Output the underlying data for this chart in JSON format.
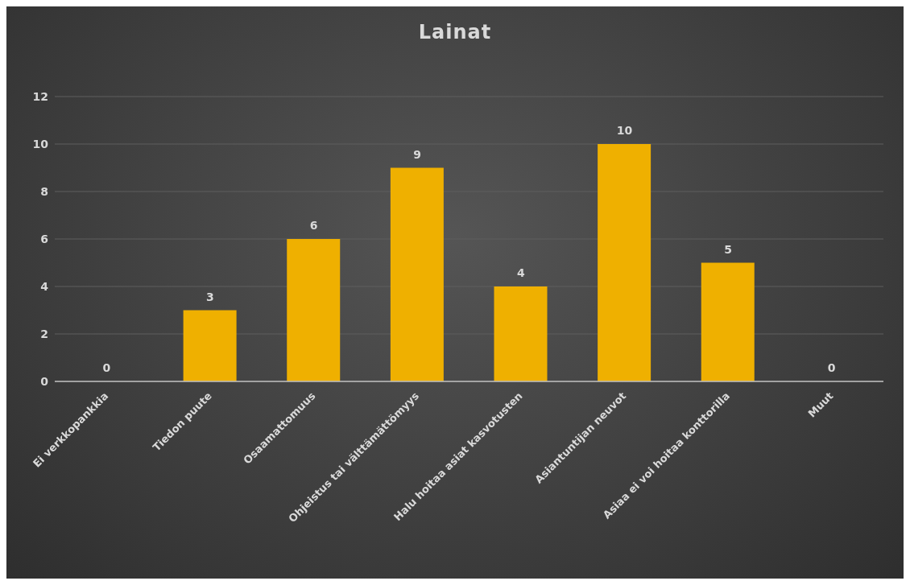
{
  "chart_data": {
    "type": "bar",
    "title": "Lainat",
    "categories": [
      "Ei verkkopankkia",
      "Tiedon puute",
      "Osaamattomuus",
      "Ohjeistus tai välttämättömyys",
      "Halu hoitaa asiat kasvotusten",
      "Asiantuntijan neuvot",
      "Asiaa ei voi hoitaa konttorilla",
      "Muut"
    ],
    "values": [
      0,
      3,
      6,
      9,
      4,
      10,
      5,
      0
    ],
    "color": "#efb000",
    "ylim": [
      0,
      12
    ],
    "yticks": [
      0,
      2,
      4,
      6,
      8,
      10,
      12
    ],
    "grid": "y",
    "data_labels": true
  }
}
